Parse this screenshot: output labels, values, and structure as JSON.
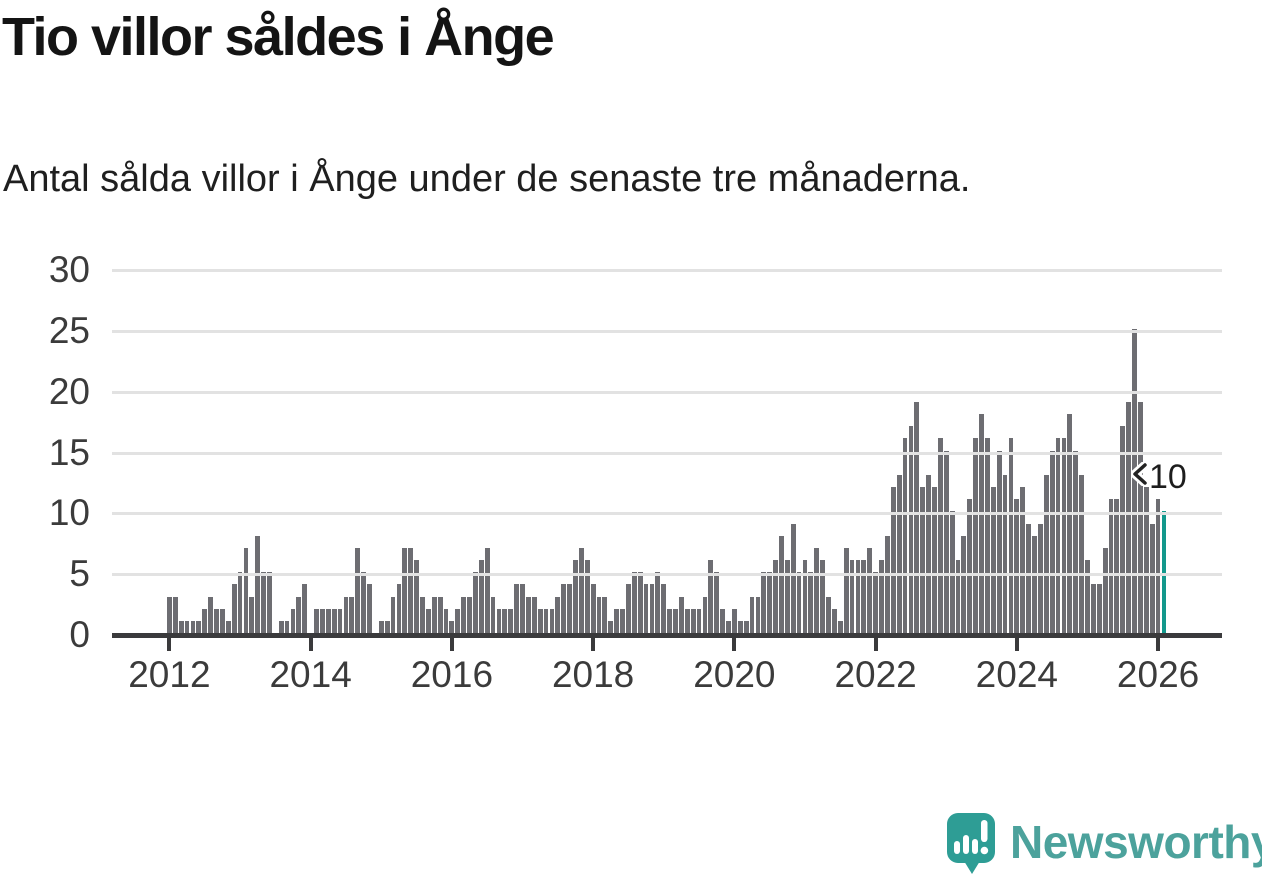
{
  "header": {
    "title": "Tio villor såldes i Ånge",
    "subtitle": "Antal sålda villor i Ånge under de senaste tre månaderna."
  },
  "chart_data": {
    "type": "bar",
    "title": "Tio villor såldes i Ånge",
    "subtitle": "Antal sålda villor i Ånge under de senaste tre månaderna.",
    "x_start": "2012-01",
    "frequency": "monthly",
    "values": [
      3,
      3,
      1,
      1,
      1,
      1,
      2,
      3,
      2,
      2,
      1,
      4,
      5,
      7,
      3,
      8,
      5,
      5,
      0,
      1,
      1,
      2,
      3,
      4,
      0,
      2,
      2,
      2,
      2,
      2,
      3,
      3,
      7,
      5,
      4,
      0,
      1,
      1,
      3,
      4,
      7,
      7,
      6,
      3,
      2,
      3,
      3,
      2,
      1,
      2,
      3,
      3,
      5,
      6,
      7,
      3,
      2,
      2,
      2,
      4,
      4,
      3,
      3,
      2,
      2,
      2,
      3,
      4,
      4,
      6,
      7,
      6,
      4,
      3,
      3,
      1,
      2,
      2,
      4,
      5,
      5,
      4,
      4,
      5,
      4,
      2,
      2,
      3,
      2,
      2,
      2,
      3,
      6,
      5,
      2,
      1,
      2,
      1,
      1,
      3,
      3,
      5,
      5,
      6,
      8,
      6,
      9,
      5,
      6,
      5,
      7,
      6,
      3,
      2,
      1,
      7,
      6,
      6,
      6,
      7,
      5,
      6,
      8,
      12,
      13,
      16,
      17,
      19,
      12,
      13,
      12,
      16,
      15,
      10,
      6,
      8,
      11,
      16,
      18,
      16,
      12,
      15,
      13,
      16,
      11,
      12,
      9,
      8,
      9,
      13,
      15,
      16,
      16,
      18,
      15,
      13,
      6,
      4,
      4,
      7,
      11,
      11,
      17,
      19,
      25,
      19,
      12,
      9,
      11,
      10
    ],
    "highlight_index": 169,
    "annotation": {
      "text": "10"
    },
    "yticks": [
      0,
      5,
      10,
      15,
      20,
      25,
      30
    ],
    "ylim": [
      0,
      30
    ],
    "x_tick_years": [
      2012,
      2014,
      2016,
      2018,
      2020,
      2022,
      2024,
      2026
    ],
    "grid": true,
    "legend_position": "none",
    "colors": {
      "bar": "#6d6d72",
      "highlight": "#13988C",
      "axis": "#3a3a3c",
      "gridline": "#e2e2e2",
      "label": "#3b3b3b"
    }
  },
  "footer": {
    "brand": "Newsworthy",
    "brand_color": "#4CA29C",
    "logo_bubble_color": "#2E9D95"
  }
}
